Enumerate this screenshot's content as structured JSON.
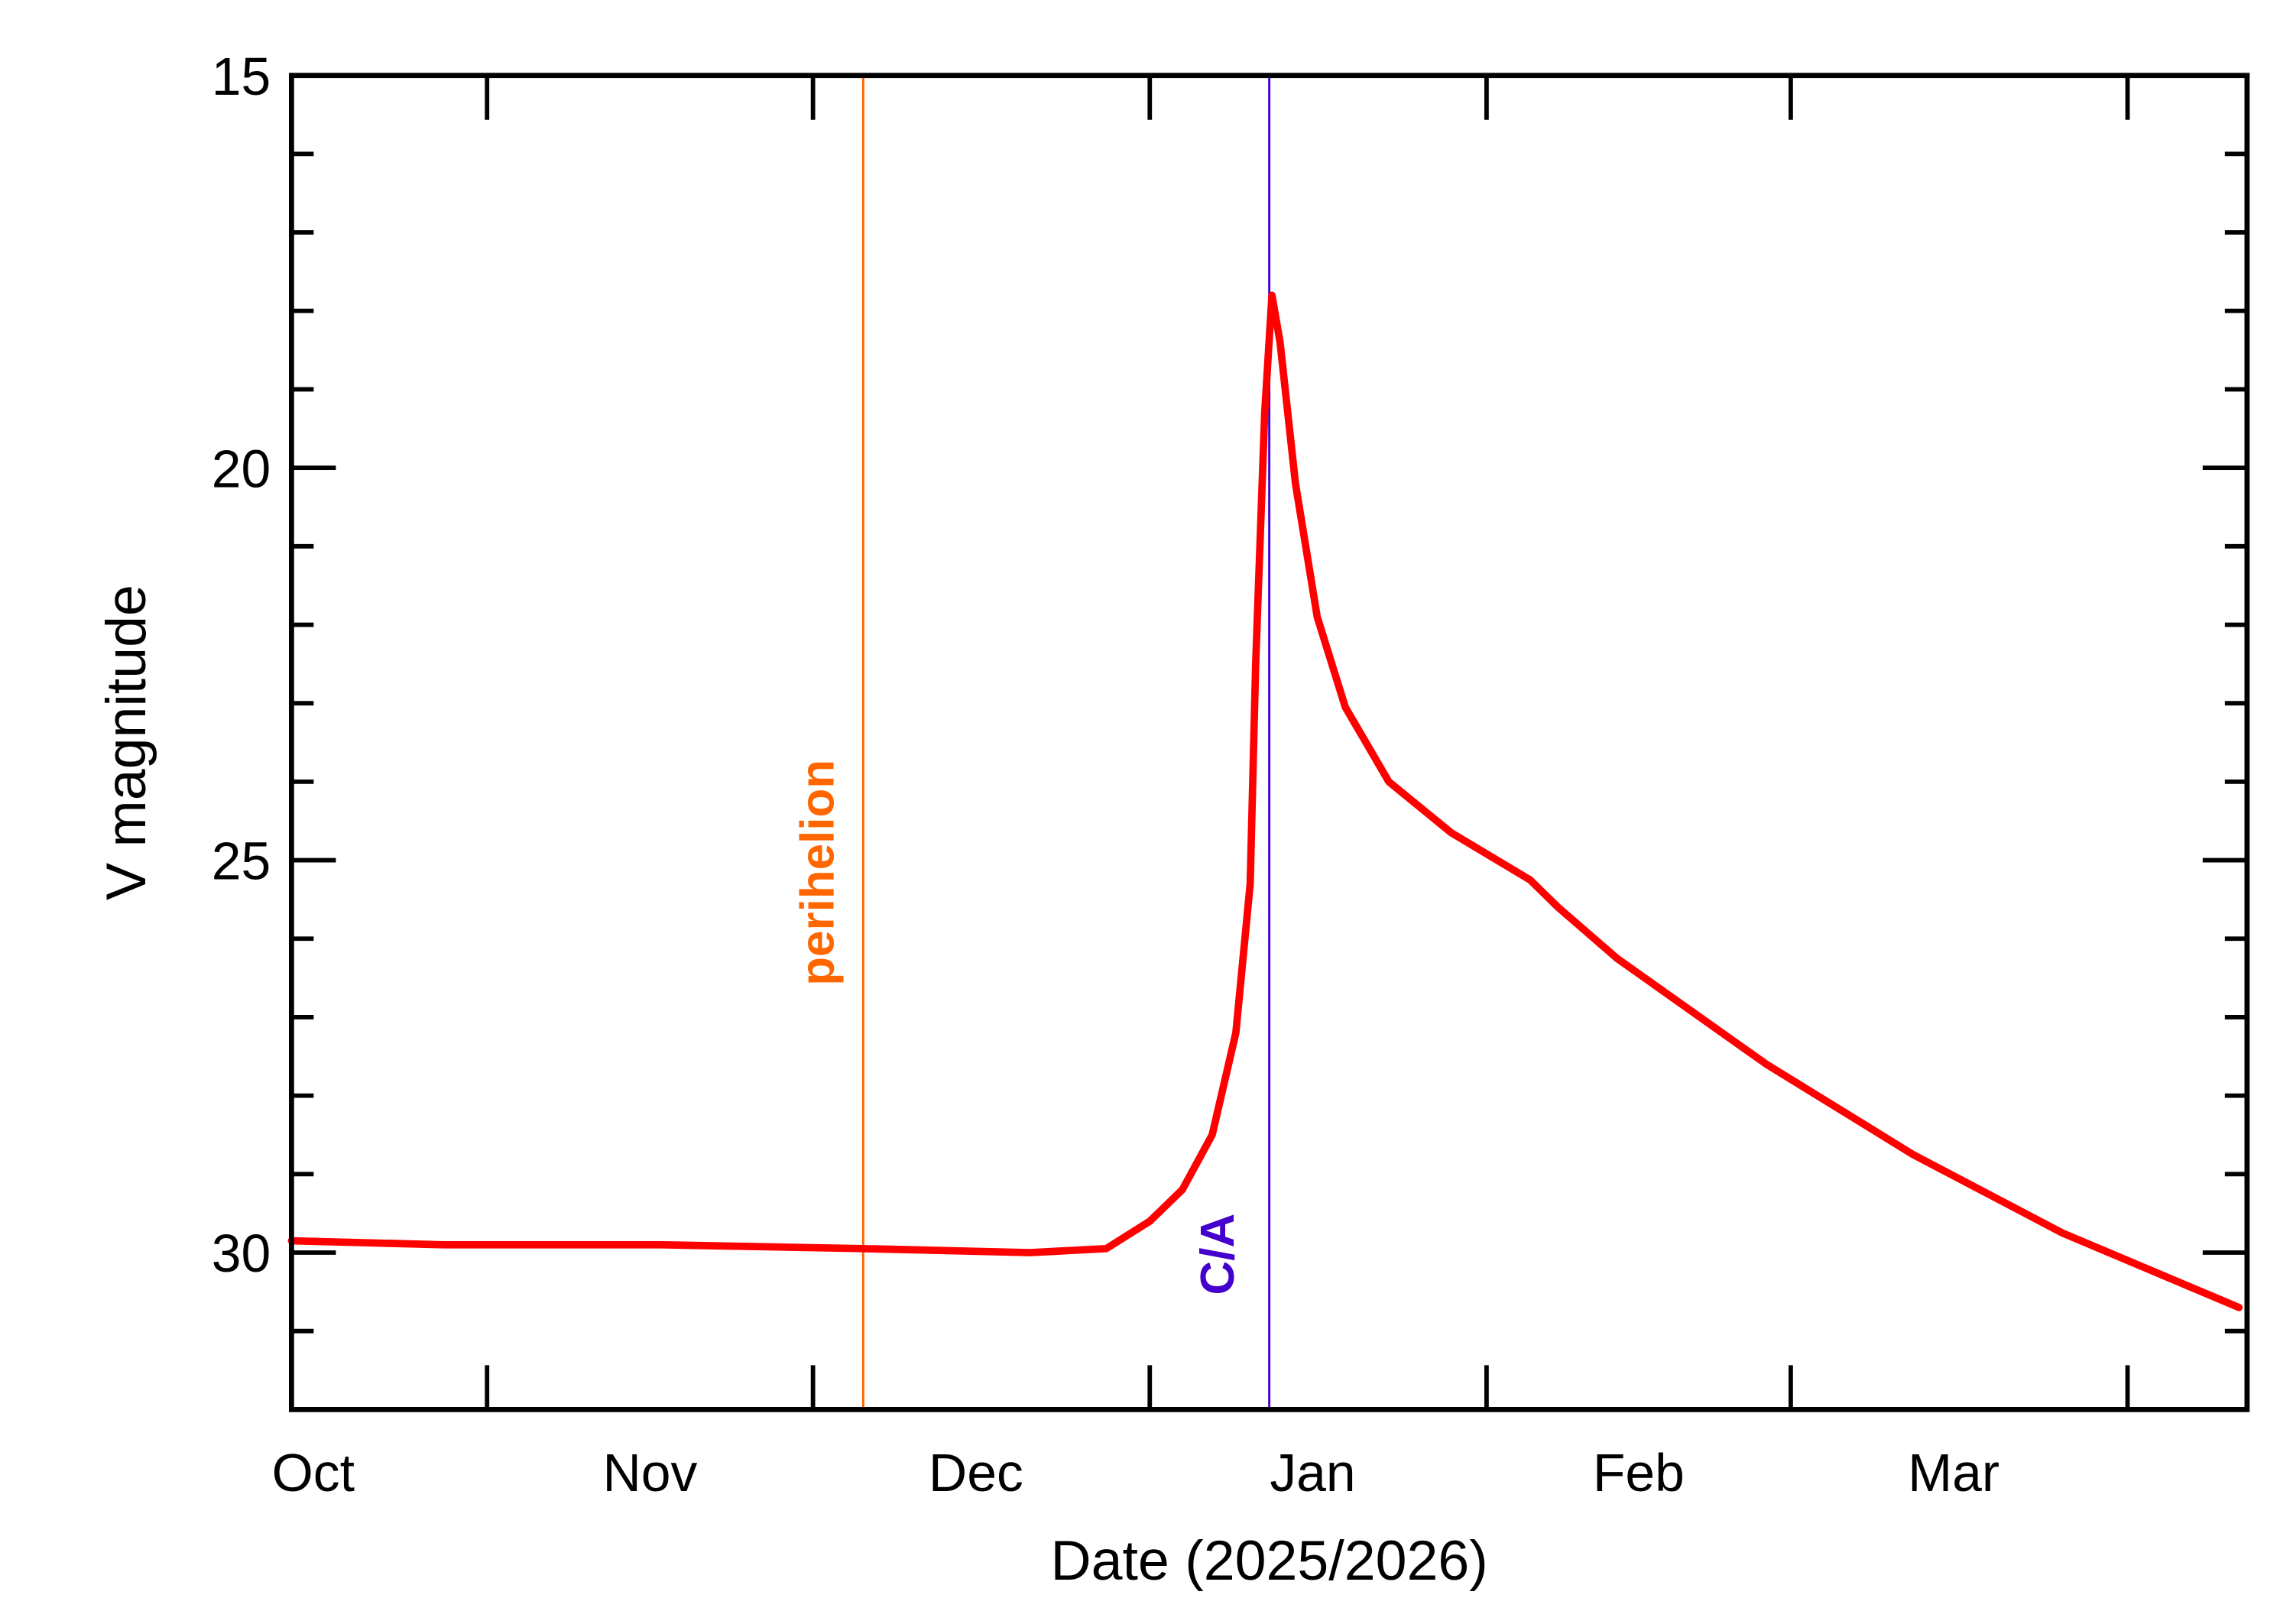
{
  "chart_data": {
    "type": "line",
    "title": "",
    "xlabel": "Date (2025/2026)",
    "ylabel": "V magnitude",
    "xlim": [
      "2025-10-14",
      "2026-04-12"
    ],
    "ylim": [
      32,
      15
    ],
    "y_inverted": true,
    "grid": false,
    "x_tick_labels": [
      {
        "label": "Oct",
        "date": "2025-10-16"
      },
      {
        "label": "Nov",
        "date": "2025-11-16"
      },
      {
        "label": "Dec",
        "date": "2025-12-16"
      },
      {
        "label": "Jan",
        "date": "2026-01-16"
      },
      {
        "label": "Feb",
        "date": "2026-02-15"
      },
      {
        "label": "Mar",
        "date": "2026-03-16"
      }
    ],
    "x_major_ticks": [
      "2025-11-01",
      "2025-12-01",
      "2026-01-01",
      "2026-02-01",
      "2026-03-01",
      "2026-04-01"
    ],
    "y_tick_labels": [
      "15",
      "20",
      "25",
      "30"
    ],
    "y_major_ticks": [
      15,
      20,
      25,
      30
    ],
    "y_minor_ticks": [
      16,
      17,
      18,
      19,
      21,
      22,
      23,
      24,
      26,
      27,
      28,
      29,
      31
    ],
    "series": [
      {
        "color": "#ff0000",
        "x": [
          "2025-10-14",
          "2025-10-28",
          "2025-11-17",
          "2025-12-05T15:00",
          "2025-12-21",
          "2025-12-28",
          "2026-01-01",
          "2026-01-04",
          "2026-01-06T18:00",
          "2026-01-08T22:00",
          "2026-01-10T06:00",
          "2026-01-10T18:00",
          "2026-01-11T14:00",
          "2026-01-12T06:00",
          "2026-01-13T00:00",
          "2026-01-14T10:00",
          "2026-01-16T10:00",
          "2026-01-19",
          "2026-01-23",
          "2026-01-28T18:00",
          "2026-02-05",
          "2026-02-07T14:00",
          "2026-02-13",
          "2026-02-26T18:00",
          "2026-03-12T06:00",
          "2026-03-26",
          "2026-04-11T06:00"
        ],
        "y": [
          29.85,
          29.9,
          29.9,
          29.95,
          30.0,
          29.95,
          29.6,
          29.2,
          28.5,
          27.2,
          25.3,
          22.5,
          19.3,
          17.8,
          18.4,
          20.2,
          21.9,
          23.05,
          24.0,
          24.65,
          25.25,
          25.6,
          26.25,
          27.6,
          28.75,
          29.75,
          30.7
        ]
      }
    ],
    "annotations": [
      {
        "label": "perihelion",
        "date": "2025-12-05T15:00",
        "color": "#ff6600"
      },
      {
        "label": "C/A",
        "date": "2026-01-12",
        "color": "#4400cc"
      }
    ]
  }
}
